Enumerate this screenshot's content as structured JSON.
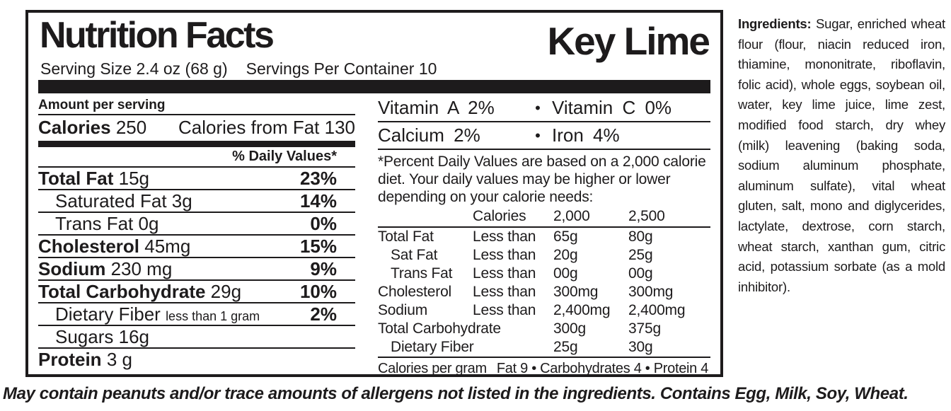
{
  "bullet": "•",
  "label": {
    "title": "Nutrition Facts",
    "product": "Key Lime",
    "serving_size": "Serving Size 2.4 oz (68 g)",
    "servings_per_container": "Servings Per Container 10",
    "amount_per_serving": "Amount per serving",
    "calories_label": "Calories",
    "calories_value": "250",
    "calories_from_fat": "Calories from Fat 130",
    "daily_values_header": "% Daily Values*",
    "rows": [
      {
        "name": "Total Fat",
        "amount": "15g",
        "dv": "23%"
      },
      {
        "name": "Saturated Fat",
        "amount": "3g",
        "dv": "14%"
      },
      {
        "name": "Trans Fat",
        "amount": "0g",
        "dv": "0%"
      },
      {
        "name": "Cholesterol",
        "amount": "45mg",
        "dv": "15%"
      },
      {
        "name": "Sodium",
        "amount": "230 mg",
        "dv": "9%"
      },
      {
        "name": "Total Carbohydrate",
        "amount": "29g",
        "dv": "10%"
      },
      {
        "name": "Dietary Fiber",
        "amount": "less than 1 gram",
        "dv": "2%"
      },
      {
        "name": "Sugars",
        "amount": "16g",
        "dv": ""
      },
      {
        "name": "Protein",
        "amount": "3 g",
        "dv": ""
      }
    ],
    "vitamins": {
      "row1_left": "Vitamin A 2%",
      "row1_right": "Vitamin C 0%",
      "row2_left": "Calcium 2%",
      "row2_right": "Iron 4%"
    },
    "footnote": "*Percent Daily Values are based on a 2,000 calorie diet. Your daily values may be higher or lower depending on your calorie needs:",
    "dv_table": {
      "header": {
        "col2": "Calories",
        "col3": "2,000",
        "col4": "2,500"
      },
      "rows": [
        {
          "name": "Total Fat",
          "qualifier": "Less than",
          "v2000": "65g",
          "v2500": "80g"
        },
        {
          "name": "Sat Fat",
          "qualifier": "Less than",
          "v2000": "20g",
          "v2500": "25g"
        },
        {
          "name": "Trans Fat",
          "qualifier": "Less than",
          "v2000": "00g",
          "v2500": "00g"
        },
        {
          "name": "Cholesterol",
          "qualifier": "Less than",
          "v2000": "300mg",
          "v2500": "300mg"
        },
        {
          "name": "Sodium",
          "qualifier": "Less than",
          "v2000": "2,400mg",
          "v2500": "2,400mg"
        },
        {
          "name": "Total Carbohydrate",
          "qualifier": "",
          "v2000": "300g",
          "v2500": "375g"
        },
        {
          "name": "Dietary Fiber",
          "qualifier": "",
          "v2000": "25g",
          "v2500": "30g"
        }
      ]
    },
    "calories_per_gram": {
      "label": "Calories per gram",
      "values": "Fat 9 • Carbohydrates 4 • Protein 4"
    }
  },
  "ingredients": {
    "label": "Ingredients:",
    "text": "Sugar, enriched wheat flour (flour, niacin reduced iron, thiamine, mononitrate, riboflavin, folic acid), whole eggs, soybean oil, water, key lime juice, lime zest, modified food starch, dry whey (milk) leavening (baking soda, sodium aluminum phosphate, aluminum sulfate), vital wheat gluten, salt, mono and diglycerides, lactylate, dextrose, corn starch, wheat starch, xanthan gum, citric acid, potassium sorbate (as a mold inhibitor)."
  },
  "allergen": "May contain peanuts and/or trace amounts of allergens not listed in the ingredients. Contains Egg, Milk, Soy, Wheat."
}
